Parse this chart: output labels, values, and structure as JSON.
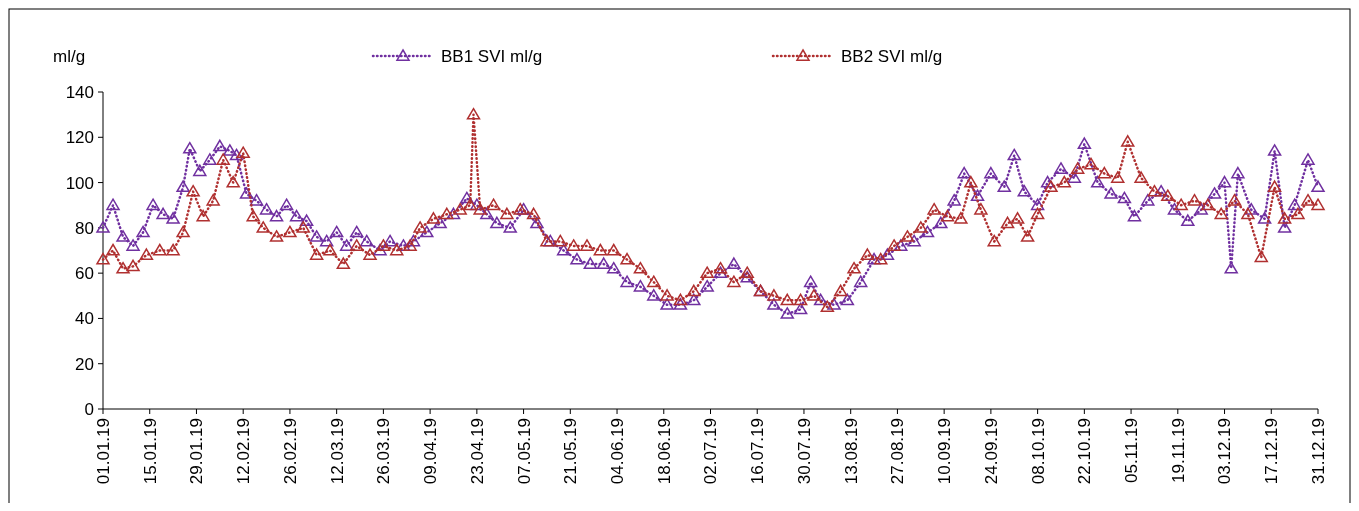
{
  "chart_data": {
    "type": "line",
    "ylabel": "ml/g",
    "legend": "top",
    "marker": "triangle",
    "line_style": "dotted",
    "grid": false,
    "xlim": [
      "--01-01",
      "--12-31"
    ],
    "xticks": [
      {
        "value": "--01-01",
        "label": "01.01.19"
      },
      {
        "value": "--01-15",
        "label": "15.01.19"
      },
      {
        "value": "--01-29",
        "label": "29.01.19"
      },
      {
        "value": "--02-12",
        "label": "12.02.19"
      },
      {
        "value": "--02-26",
        "label": "26.02.19"
      },
      {
        "value": "--03-12",
        "label": "12.03.19"
      },
      {
        "value": "--03-26",
        "label": "26.03.19"
      },
      {
        "value": "--04-09",
        "label": "09.04.19"
      },
      {
        "value": "--04-23",
        "label": "23.04.19"
      },
      {
        "value": "--05-07",
        "label": "07.05.19"
      },
      {
        "value": "--05-21",
        "label": "21.05.19"
      },
      {
        "value": "--06-04",
        "label": "04.06.19"
      },
      {
        "value": "--06-18",
        "label": "18.06.19"
      },
      {
        "value": "--07-02",
        "label": "02.07.19"
      },
      {
        "value": "--07-16",
        "label": "16.07.19"
      },
      {
        "value": "--07-30",
        "label": "30.07.19"
      },
      {
        "value": "--08-13",
        "label": "13.08.19"
      },
      {
        "value": "--08-27",
        "label": "27.08.19"
      },
      {
        "value": "--09-10",
        "label": "10.09.19"
      },
      {
        "value": "--09-24",
        "label": "24.09.19"
      },
      {
        "value": "--10-08",
        "label": "08.10.19"
      },
      {
        "value": "--10-22",
        "label": "22.10.19"
      },
      {
        "value": "--11-05",
        "label": "05.11.19"
      },
      {
        "value": "--11-19",
        "label": "19.11.19"
      },
      {
        "value": "--12-03",
        "label": "03.12.19"
      },
      {
        "value": "--12-17",
        "label": "17.12.19"
      },
      {
        "value": "--12-31",
        "label": "31.12.19"
      }
    ],
    "ylim": [
      0,
      140
    ],
    "yticks": [
      0,
      20,
      40,
      60,
      80,
      100,
      120,
      140
    ],
    "series": [
      {
        "name": "BB1 SVI ml/g",
        "color": "#7030a0",
        "x": [
          "--01-01",
          "--01-04",
          "--01-07",
          "--01-10",
          "--01-13",
          "--01-16",
          "--01-19",
          "--01-22",
          "--01-25",
          "--01-27",
          "--01-30",
          "--02-02",
          "--02-05",
          "--02-08",
          "--02-10",
          "--02-13",
          "--02-16",
          "--02-19",
          "--02-22",
          "--02-25",
          "--02-28",
          "--03-03",
          "--03-06",
          "--03-09",
          "--03-12",
          "--03-15",
          "--03-18",
          "--03-21",
          "--03-25",
          "--03-28",
          "--04-01",
          "--04-04",
          "--04-08",
          "--04-12",
          "--04-16",
          "--04-20",
          "--04-23",
          "--04-26",
          "--04-29",
          "--05-03",
          "--05-07",
          "--05-11",
          "--05-15",
          "--05-19",
          "--05-23",
          "--05-27",
          "--05-31",
          "--06-03",
          "--06-07",
          "--06-11",
          "--06-15",
          "--06-19",
          "--06-23",
          "--06-27",
          "--07-01",
          "--07-05",
          "--07-09",
          "--07-13",
          "--07-17",
          "--07-21",
          "--07-25",
          "--07-29",
          "--08-01",
          "--08-04",
          "--08-08",
          "--08-12",
          "--08-16",
          "--08-20",
          "--08-24",
          "--08-28",
          "--09-01",
          "--09-05",
          "--09-09",
          "--09-13",
          "--09-16",
          "--09-20",
          "--09-24",
          "--09-28",
          "--10-01",
          "--10-04",
          "--10-08",
          "--10-11",
          "--10-15",
          "--10-19",
          "--10-22",
          "--10-26",
          "--10-30",
          "--11-03",
          "--11-06",
          "--11-10",
          "--11-14",
          "--11-18",
          "--11-22",
          "--11-26",
          "--11-30",
          "--12-03",
          "--12-05",
          "--12-07",
          "--12-11",
          "--12-15",
          "--12-18",
          "--12-21",
          "--12-24",
          "--12-28",
          "--12-31"
        ],
        "values": [
          80,
          90,
          76,
          72,
          78,
          90,
          86,
          84,
          98,
          115,
          105,
          110,
          116,
          114,
          112,
          95,
          92,
          88,
          85,
          90,
          85,
          83,
          76,
          74,
          78,
          72,
          78,
          74,
          70,
          74,
          72,
          74,
          78,
          82,
          86,
          93,
          90,
          86,
          82,
          80,
          88,
          82,
          74,
          70,
          66,
          64,
          64,
          62,
          56,
          54,
          50,
          46,
          46,
          48,
          54,
          60,
          64,
          58,
          52,
          46,
          42,
          44,
          56,
          48,
          46,
          48,
          56,
          66,
          68,
          72,
          74,
          78,
          82,
          92,
          104,
          94,
          104,
          98,
          112,
          96,
          90,
          100,
          106,
          102,
          117,
          100,
          95,
          93,
          85,
          92,
          96,
          88,
          83,
          88,
          95,
          100,
          62,
          104,
          88,
          84,
          114,
          80,
          90,
          110,
          98
        ]
      },
      {
        "name": "BB2 SVI ml/g",
        "color": "#b03030",
        "x": [
          "--01-01",
          "--01-04",
          "--01-07",
          "--01-10",
          "--01-14",
          "--01-18",
          "--01-22",
          "--01-25",
          "--01-28",
          "--01-31",
          "--02-03",
          "--02-06",
          "--02-09",
          "--02-12",
          "--02-15",
          "--02-18",
          "--02-22",
          "--02-26",
          "--03-02",
          "--03-06",
          "--03-10",
          "--03-14",
          "--03-18",
          "--03-22",
          "--03-26",
          "--03-30",
          "--04-03",
          "--04-06",
          "--04-10",
          "--04-14",
          "--04-18",
          "--04-21",
          "--04-22",
          "--04-24",
          "--04-28",
          "--05-02",
          "--05-06",
          "--05-10",
          "--05-14",
          "--05-18",
          "--05-22",
          "--05-26",
          "--05-30",
          "--06-03",
          "--06-07",
          "--06-11",
          "--06-15",
          "--06-19",
          "--06-23",
          "--06-27",
          "--07-01",
          "--07-05",
          "--07-09",
          "--07-13",
          "--07-17",
          "--07-21",
          "--07-25",
          "--07-29",
          "--08-02",
          "--08-06",
          "--08-10",
          "--08-14",
          "--08-18",
          "--08-22",
          "--08-26",
          "--08-30",
          "--09-03",
          "--09-07",
          "--09-11",
          "--09-15",
          "--09-18",
          "--09-21",
          "--09-25",
          "--09-29",
          "--10-02",
          "--10-05",
          "--10-08",
          "--10-12",
          "--10-16",
          "--10-20",
          "--10-24",
          "--10-28",
          "--11-01",
          "--11-04",
          "--11-08",
          "--11-12",
          "--11-16",
          "--11-20",
          "--11-24",
          "--11-28",
          "--12-02",
          "--12-06",
          "--12-10",
          "--12-14",
          "--12-18",
          "--12-21",
          "--12-25",
          "--12-28",
          "--12-31"
        ],
        "values": [
          66,
          70,
          62,
          63,
          68,
          70,
          70,
          78,
          96,
          85,
          92,
          110,
          100,
          113,
          85,
          80,
          76,
          78,
          80,
          68,
          70,
          64,
          72,
          68,
          72,
          70,
          72,
          80,
          84,
          86,
          88,
          90,
          130,
          88,
          90,
          86,
          88,
          86,
          74,
          74,
          72,
          72,
          70,
          70,
          66,
          62,
          56,
          50,
          48,
          52,
          60,
          62,
          56,
          60,
          52,
          50,
          48,
          48,
          50,
          45,
          52,
          62,
          68,
          66,
          72,
          76,
          80,
          88,
          85,
          84,
          100,
          88,
          74,
          82,
          84,
          76,
          86,
          98,
          100,
          106,
          108,
          104,
          102,
          118,
          102,
          96,
          94,
          90,
          92,
          90,
          86,
          92,
          86,
          67,
          98,
          84,
          86,
          92,
          90
        ]
      }
    ]
  }
}
